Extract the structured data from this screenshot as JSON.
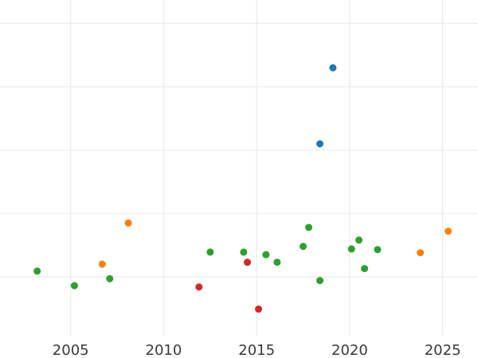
{
  "figure": {
    "background": "#ffffff",
    "grid_color": "#ebebeb",
    "tick_label_color": "#3b3b3b"
  },
  "chart_data": {
    "type": "scatter",
    "title": "",
    "xlabel": "",
    "ylabel": "",
    "grid": true,
    "legend_position": "none",
    "x_axis": {
      "tick_labels": [
        "2005",
        "2010",
        "2015",
        "2020",
        "2025"
      ],
      "tick_values": [
        2005,
        2010,
        2015,
        2020,
        2025
      ],
      "range": [
        2001.2,
        2026.9
      ]
    },
    "y_axis": {
      "tick_labels": [],
      "gridline_values": [
        0,
        1,
        2,
        3,
        4
      ],
      "range": [
        -0.93,
        4.37
      ],
      "note": "no visible y-axis tick labels; y values estimated in gridline units (bottom gridline = 0, one unit per gridline)"
    },
    "marker": {
      "shape": "circle",
      "radius_px": 4.5
    },
    "series": [
      {
        "name": "green-series",
        "color": "#2ca02c",
        "points": [
          [
            2003.2,
            0.09
          ],
          [
            2005.2,
            -0.14
          ],
          [
            2007.1,
            -0.03
          ],
          [
            2012.5,
            0.39
          ],
          [
            2014.3,
            0.39
          ],
          [
            2015.5,
            0.35
          ],
          [
            2016.1,
            0.23
          ],
          [
            2017.5,
            0.48
          ],
          [
            2017.8,
            0.78
          ],
          [
            2018.4,
            -0.06
          ],
          [
            2020.1,
            0.44
          ],
          [
            2020.5,
            0.58
          ],
          [
            2020.8,
            0.13
          ],
          [
            2021.5,
            0.43
          ]
        ]
      },
      {
        "name": "orange-series",
        "color": "#ff7f0e",
        "points": [
          [
            2006.7,
            0.2
          ],
          [
            2008.1,
            0.85
          ],
          [
            2023.8,
            0.38
          ],
          [
            2025.3,
            0.72
          ]
        ]
      },
      {
        "name": "red-series",
        "color": "#d62728",
        "points": [
          [
            2011.9,
            -0.16
          ],
          [
            2014.5,
            0.23
          ],
          [
            2015.1,
            -0.51
          ]
        ]
      },
      {
        "name": "blue-series",
        "color": "#1f77b4",
        "points": [
          [
            2018.4,
            2.1
          ],
          [
            2019.1,
            3.3
          ]
        ]
      }
    ]
  }
}
